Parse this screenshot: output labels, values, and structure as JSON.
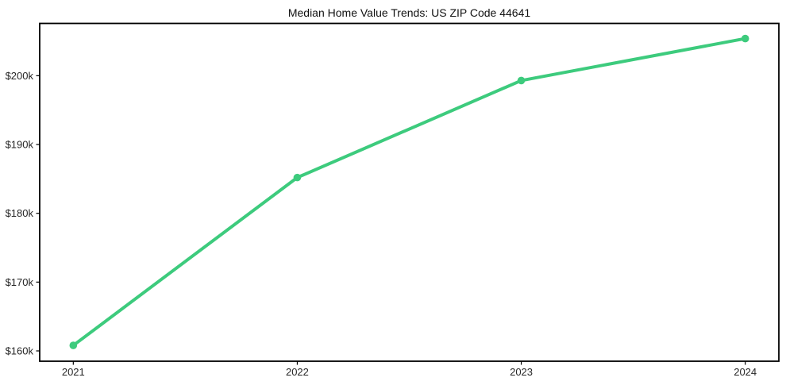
{
  "figure": {
    "background": "#ffffff"
  },
  "chart_data": {
    "type": "line",
    "title": "Median Home Value Trends: US ZIP Code 44641",
    "xlabel": "",
    "ylabel": "",
    "categories": [
      "2021",
      "2022",
      "2023",
      "2024"
    ],
    "x": [
      2021,
      2022,
      2023,
      2024
    ],
    "values": [
      160800,
      185200,
      199300,
      205400
    ],
    "series": [
      {
        "name": "Median Home Value",
        "values": [
          160800,
          185200,
          199300,
          205400
        ]
      }
    ],
    "x_ticks": [
      {
        "value": 2021,
        "label": "2021"
      },
      {
        "value": 2022,
        "label": "2022"
      },
      {
        "value": 2023,
        "label": "2023"
      },
      {
        "value": 2024,
        "label": "2024"
      }
    ],
    "y_ticks": [
      {
        "value": 160000,
        "label": "$160k"
      },
      {
        "value": 170000,
        "label": "$170k"
      },
      {
        "value": 180000,
        "label": "$180k"
      },
      {
        "value": 190000,
        "label": "$190k"
      },
      {
        "value": 200000,
        "label": "$200k"
      }
    ],
    "xlim": [
      2020.85,
      2024.15
    ],
    "ylim": [
      158500,
      207600
    ],
    "grid": false,
    "legend": "none",
    "line_color": "#3dcb7d",
    "marker": "circle",
    "axis_color": "#000000",
    "tick_label_color": "#262626"
  }
}
